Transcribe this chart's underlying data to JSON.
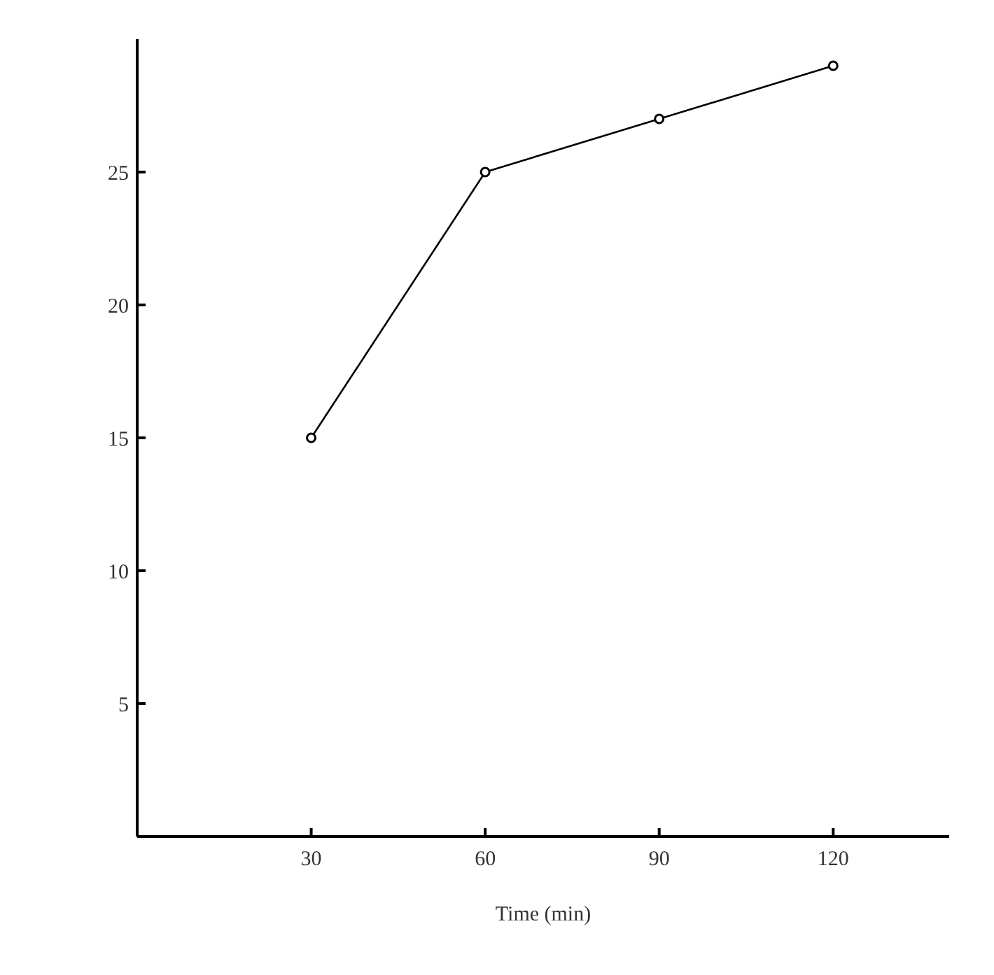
{
  "chart_data": {
    "type": "line",
    "xlabel": "Time (min)",
    "x": [
      30,
      60,
      90,
      120
    ],
    "series": [
      {
        "color": "#000000",
        "values": [
          15,
          25,
          27,
          29
        ]
      }
    ],
    "xlim": [
      0,
      140
    ],
    "xticks": [
      30,
      60,
      90,
      120
    ],
    "ylim": [
      0,
      30
    ],
    "yticks": [
      5,
      10,
      15,
      20,
      25
    ],
    "grid": false,
    "legend": false,
    "marker": "circle",
    "line_style": "solid"
  }
}
